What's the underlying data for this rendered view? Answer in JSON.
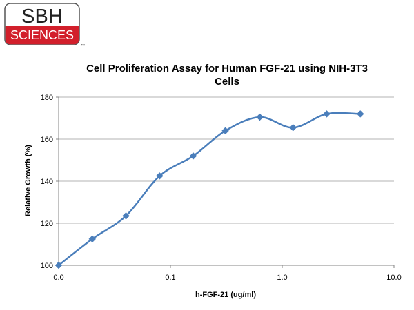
{
  "logo": {
    "line1": "SBH",
    "line2": "SCIENCES",
    "mark": "™"
  },
  "colors": {
    "series": "#4A7EBB",
    "logo_red": "#d21f2b",
    "grid": "#b3b3b3"
  },
  "chart_data": {
    "type": "line",
    "title": "Cell Proliferation Assay for Human FGF-21 using NIH-3T3 Cells",
    "title_lines": [
      "Cell Proliferation Assay for Human FGF-21 using NIH-3T3",
      "Cells"
    ],
    "xlabel": "h-FGF-21 (ug/ml)",
    "ylabel": "Relative Growth (%)",
    "x_scale": "log",
    "xlim": [
      0.01,
      10
    ],
    "ylim": [
      100,
      180
    ],
    "x_ticks": [
      0.01,
      0.1,
      1,
      10
    ],
    "x_tick_labels": [
      "0.0",
      "0.1",
      "1.0",
      "10.0"
    ],
    "y_ticks": [
      100,
      120,
      140,
      160,
      180
    ],
    "y_tick_labels": [
      "100",
      "120",
      "140",
      "160",
      "180"
    ],
    "grid": "horizontal",
    "legend": "none",
    "series": [
      {
        "x": [
          0.01,
          0.02,
          0.04,
          0.08,
          0.16,
          0.31,
          0.63,
          1.25,
          2.5,
          5.0
        ],
        "y": [
          100,
          112.5,
          123.5,
          142.5,
          152,
          164,
          170.5,
          165.5,
          172,
          172
        ]
      }
    ]
  }
}
